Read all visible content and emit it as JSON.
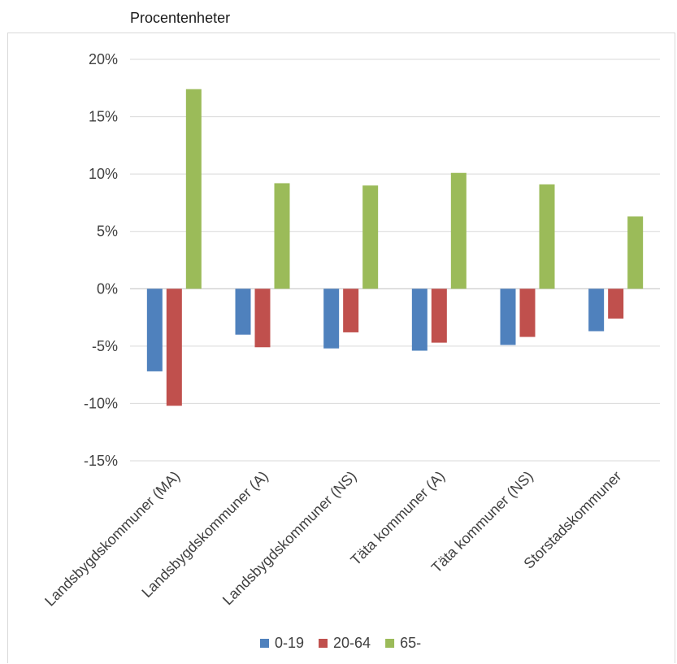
{
  "chart_data": {
    "type": "bar",
    "title": "",
    "unit_label": "Procentenheter",
    "categories": [
      "Landsbygdskommuner (MA)",
      "Landsbygdskommuner (A)",
      "Landsbygdskommuner (NS)",
      "Täta kommuner (A)",
      "Täta kommuner (NS)",
      "Storstadskommuner"
    ],
    "series": [
      {
        "name": "0-19",
        "color": "#4f81bd",
        "values": [
          -7.2,
          -4.0,
          -5.2,
          -5.4,
          -4.9,
          -3.7
        ]
      },
      {
        "name": "20-64",
        "color": "#c0504d",
        "values": [
          -10.2,
          -5.1,
          -3.8,
          -4.7,
          -4.2,
          -2.6
        ]
      },
      {
        "name": "65-",
        "color": "#9bbb59",
        "values": [
          17.4,
          9.2,
          9.0,
          10.1,
          9.1,
          6.3
        ]
      }
    ],
    "yticks": [
      "20%",
      "15%",
      "10%",
      "5%",
      "0%",
      "-5%",
      "-10%",
      "-15%"
    ],
    "ylim": [
      -15,
      20
    ],
    "grid": true,
    "legend_position": "bottom"
  }
}
